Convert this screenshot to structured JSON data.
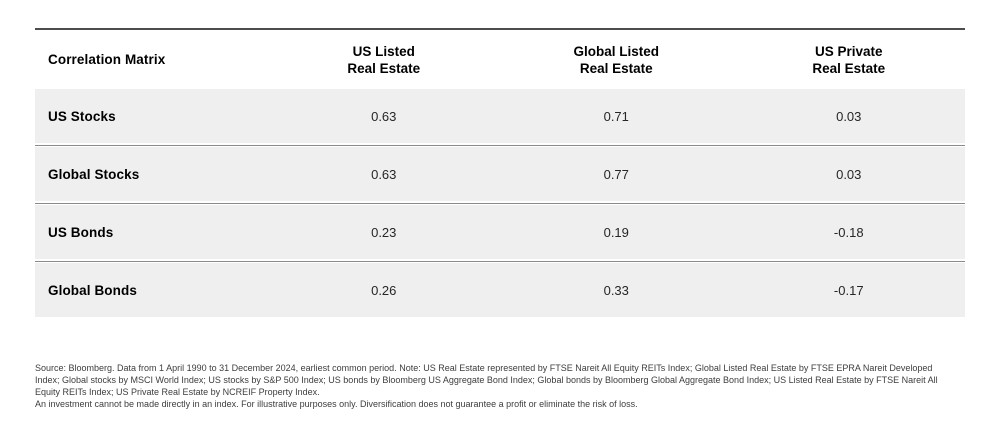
{
  "chart_data": {
    "type": "table",
    "title": "Correlation Matrix",
    "columns": [
      "US Listed\nReal Estate",
      "Global Listed\nReal Estate",
      "US Private\nReal Estate"
    ],
    "rows": [
      {
        "label": "US Stocks",
        "values": [
          "0.63",
          "0.71",
          "0.03"
        ]
      },
      {
        "label": "Global Stocks",
        "values": [
          "0.63",
          "0.77",
          "0.03"
        ]
      },
      {
        "label": "US Bonds",
        "values": [
          "0.23",
          "0.19",
          "-0.18"
        ]
      },
      {
        "label": "Global Bonds",
        "values": [
          "0.26",
          "0.33",
          "-0.17"
        ]
      }
    ]
  },
  "footnotes": [
    "Source: Bloomberg. Data from 1 April 1990 to 31 December 2024, earliest common period. Note: US Real Estate represented by FTSE Nareit All Equity REITs Index; Global Listed Real Estate by FTSE EPRA Nareit Developed",
    "Index; Global stocks by MSCI World Index; US stocks by S&P 500 Index; US bonds by Bloomberg US Aggregate Bond Index; Global bonds by Bloomberg Global Aggregate Bond Index; US Listed Real Estate by FTSE Nareit All",
    "Equity REITs Index; US Private Real Estate by NCREIF Property Index.",
    "An investment cannot be made directly in an index. For illustrative purposes only. Diversification does not guarantee a profit or eliminate the risk of loss."
  ],
  "colors": {
    "row_background": "#efefef",
    "top_rule": "#4d4d4d",
    "row_separator": "#8a8a8a",
    "header_text": "#000000",
    "value_text": "#262626",
    "footnote_text": "#3d3d3d"
  }
}
